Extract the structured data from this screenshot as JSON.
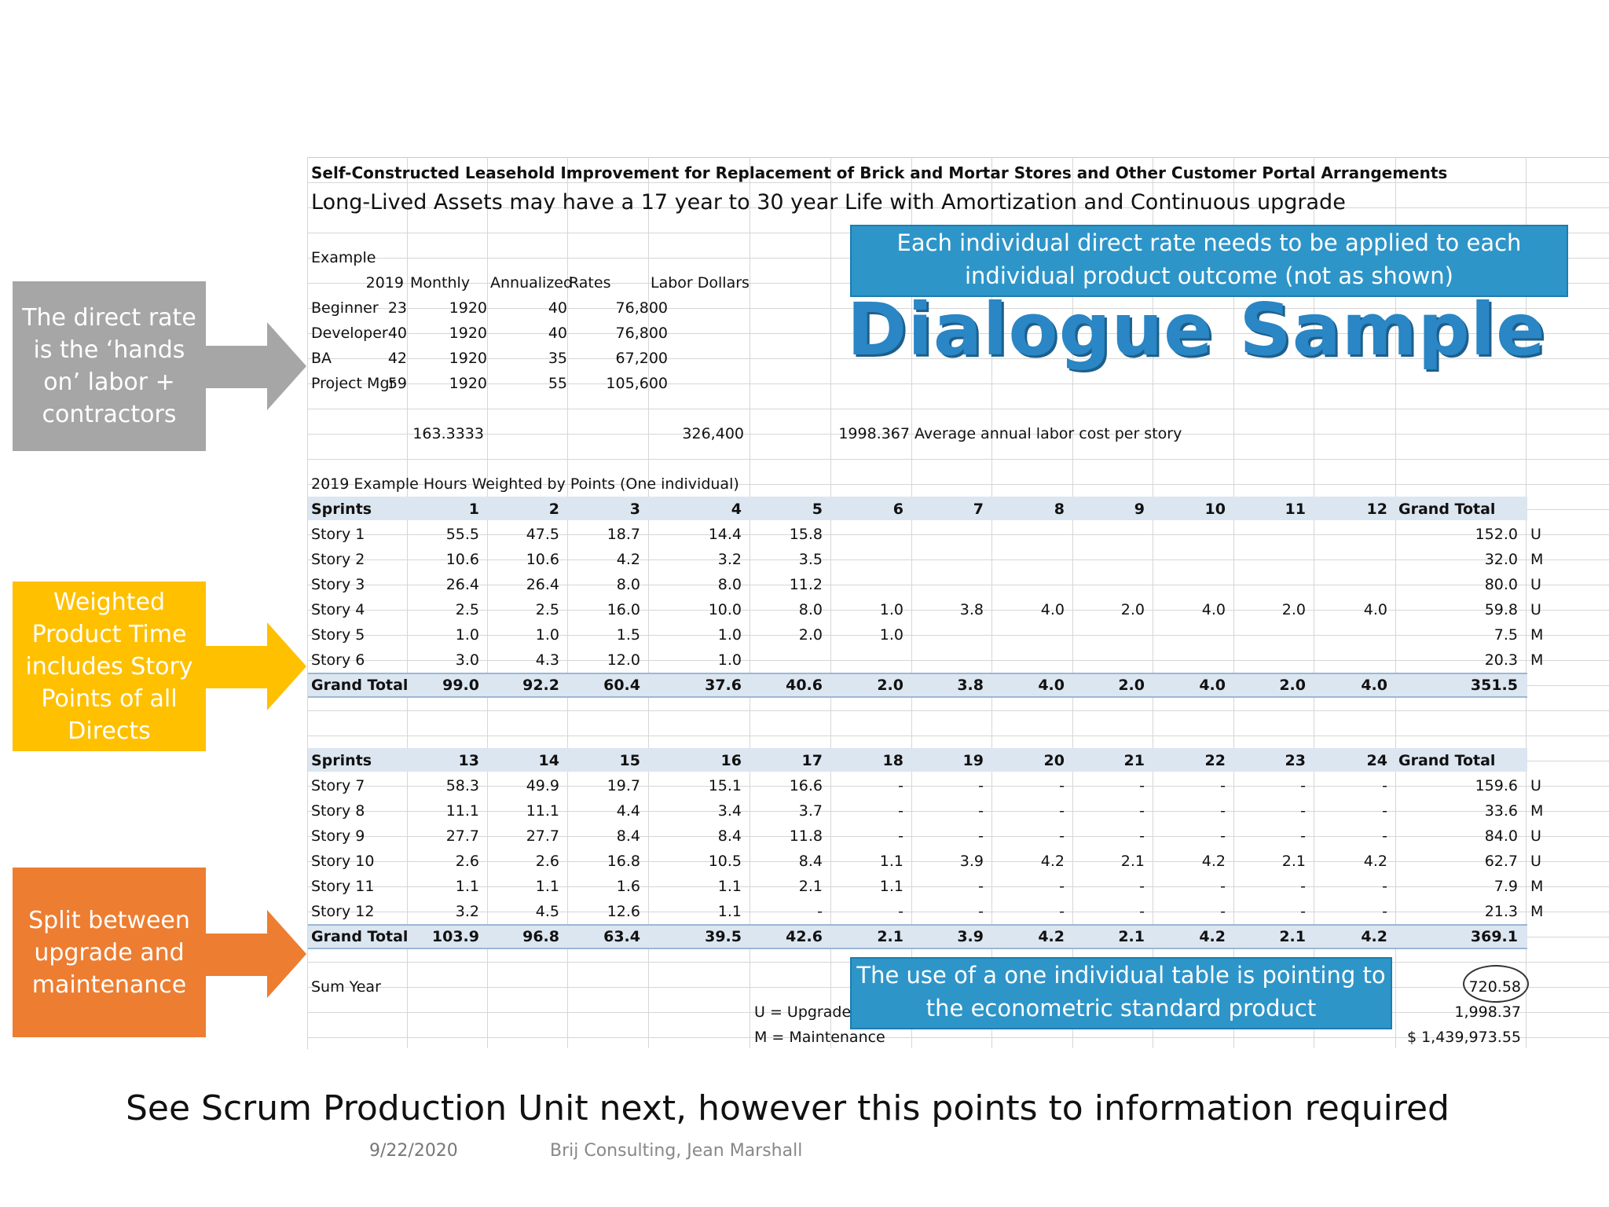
{
  "sheet": {
    "title": "Self-Constructed Leasehold Improvement for Replacement of Brick and Mortar Stores and Other Customer Portal Arrangements",
    "subtitle": "Long-Lived Assets may have a 17 year to 30 year Life with Amortization and Continuous upgrade",
    "example": {
      "label": "Example",
      "year": "2019",
      "headers": [
        "Monthly",
        "Annualized",
        "Rates",
        "Labor Dollars"
      ],
      "rows": [
        [
          "Beginner",
          "23",
          "1920",
          "40",
          "76,800"
        ],
        [
          "Developer",
          "40",
          "1920",
          "40",
          "76,800"
        ],
        [
          "BA",
          "42",
          "1920",
          "35",
          "67,200"
        ],
        [
          "Project Mgr",
          "59",
          "1920",
          "55",
          "105,600"
        ]
      ],
      "total_monthly": "163.3333",
      "total_labor": "326,400",
      "avg_value": "1998.367",
      "avg_label": "Average annual labor cost per story"
    },
    "section_title": "2019 Example Hours Weighted by Points (One individual)",
    "table1": {
      "header": [
        "Sprints",
        "1",
        "2",
        "3",
        "4",
        "5",
        "6",
        "7",
        "8",
        "9",
        "10",
        "11",
        "12",
        "Grand Total"
      ],
      "rows": [
        [
          "Story 1",
          "55.5",
          "47.5",
          "18.7",
          "14.4",
          "15.8",
          "",
          "",
          "",
          "",
          "",
          "",
          "",
          "152.0",
          "U"
        ],
        [
          "Story 2",
          "10.6",
          "10.6",
          "4.2",
          "3.2",
          "3.5",
          "",
          "",
          "",
          "",
          "",
          "",
          "",
          "32.0",
          "M"
        ],
        [
          "Story 3",
          "26.4",
          "26.4",
          "8.0",
          "8.0",
          "11.2",
          "",
          "",
          "",
          "",
          "",
          "",
          "",
          "80.0",
          "U"
        ],
        [
          "Story 4",
          "2.5",
          "2.5",
          "16.0",
          "10.0",
          "8.0",
          "1.0",
          "3.8",
          "4.0",
          "2.0",
          "4.0",
          "2.0",
          "4.0",
          "59.8",
          "U"
        ],
        [
          "Story 5",
          "1.0",
          "1.0",
          "1.5",
          "1.0",
          "2.0",
          "1.0",
          "",
          "",
          "",
          "",
          "",
          "",
          "7.5",
          "M"
        ],
        [
          "Story 6",
          "3.0",
          "4.3",
          "12.0",
          "1.0",
          "",
          "",
          "",
          "",
          "",
          "",
          "",
          "",
          "20.3",
          "M"
        ]
      ],
      "total": [
        "Grand Total",
        "99.0",
        "92.2",
        "60.4",
        "37.6",
        "40.6",
        "2.0",
        "3.8",
        "4.0",
        "2.0",
        "4.0",
        "2.0",
        "4.0",
        "351.5"
      ]
    },
    "table2": {
      "header": [
        "Sprints",
        "13",
        "14",
        "15",
        "16",
        "17",
        "18",
        "19",
        "20",
        "21",
        "22",
        "23",
        "24",
        "Grand Total"
      ],
      "rows": [
        [
          "Story 7",
          "58.3",
          "49.9",
          "19.7",
          "15.1",
          "16.6",
          "-",
          "-",
          "-",
          "-",
          "-",
          "-",
          "-",
          "159.6",
          "U"
        ],
        [
          "Story 8",
          "11.1",
          "11.1",
          "4.4",
          "3.4",
          "3.7",
          "-",
          "-",
          "-",
          "-",
          "-",
          "-",
          "-",
          "33.6",
          "M"
        ],
        [
          "Story 9",
          "27.7",
          "27.7",
          "8.4",
          "8.4",
          "11.8",
          "-",
          "-",
          "-",
          "-",
          "-",
          "-",
          "-",
          "84.0",
          "U"
        ],
        [
          "Story 10",
          "2.6",
          "2.6",
          "16.8",
          "10.5",
          "8.4",
          "1.1",
          "3.9",
          "4.2",
          "2.1",
          "4.2",
          "2.1",
          "4.2",
          "62.7",
          "U"
        ],
        [
          "Story 11",
          "1.1",
          "1.1",
          "1.6",
          "1.1",
          "2.1",
          "1.1",
          "-",
          "-",
          "-",
          "-",
          "-",
          "-",
          "7.9",
          "M"
        ],
        [
          "Story 12",
          "3.2",
          "4.5",
          "12.6",
          "1.1",
          "-",
          "-",
          "-",
          "-",
          "-",
          "-",
          "-",
          "-",
          "21.3",
          "M"
        ]
      ],
      "total": [
        "Grand Total",
        "103.9",
        "96.8",
        "63.4",
        "39.5",
        "42.6",
        "2.1",
        "3.9",
        "4.2",
        "2.1",
        "4.2",
        "2.1",
        "4.2",
        "369.1"
      ]
    },
    "sum_year_label": "Sum Year",
    "sum_values": [
      "720.58",
      "1,998.37",
      "$ 1,439,973.55"
    ],
    "legend_u": "U = Upgrade",
    "legend_m": "M = Maintenance"
  },
  "callouts": {
    "gray": "The direct rate is the ‘hands on’ labor + contractors",
    "yellow": "Weighted Product Time includes Story Points of all Directs",
    "orange": "Split between upgrade and maintenance",
    "colors": {
      "gray": "#a6a6a6",
      "yellow": "#ffc000",
      "orange": "#ed7d31",
      "blue": "#2e95c9"
    }
  },
  "blue_top": "Each individual direct rate needs to be applied to each individual product outcome (not as shown)",
  "blue_bottom": "The use of a one individual table is pointing to the econometric standard product",
  "watermark": "Dialogue Sample",
  "footer": {
    "main": "See Scrum Production Unit next, however this points to information required",
    "date": "9/22/2020",
    "author": "Brij Consulting, Jean Marshall"
  }
}
